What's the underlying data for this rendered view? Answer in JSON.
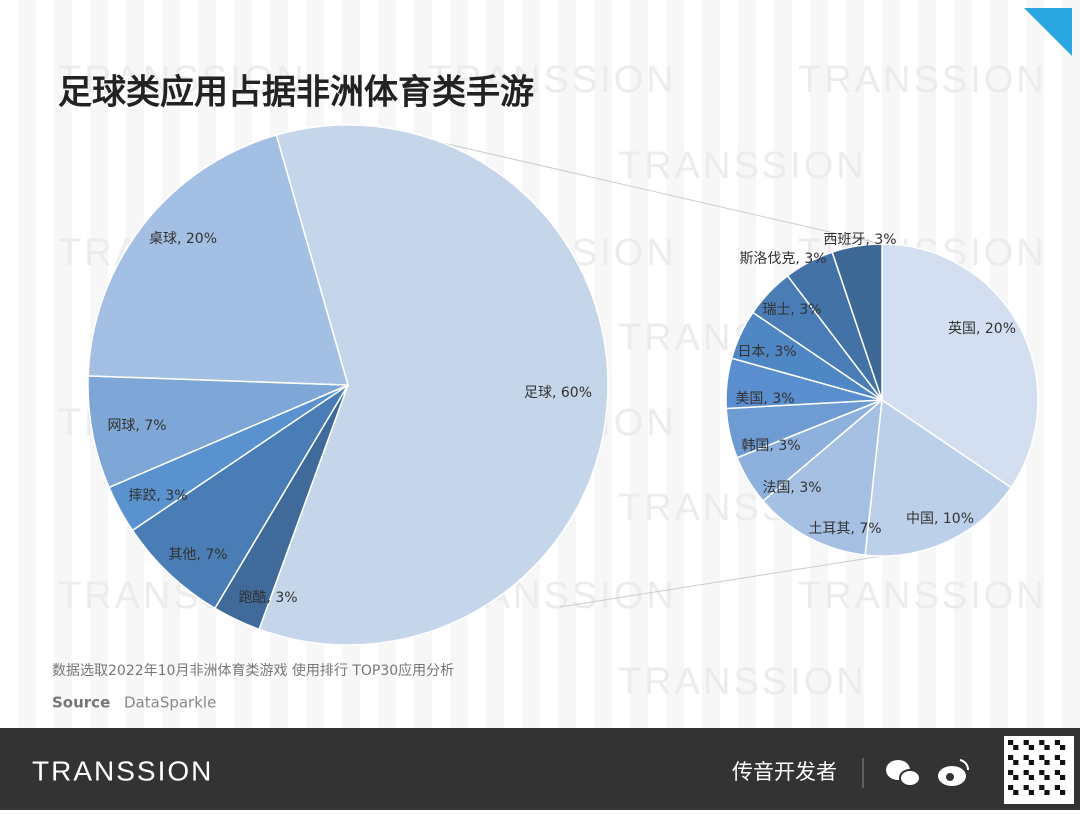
{
  "title": "足球类应用占据非洲体育类手游",
  "watermark": "TRANSSION",
  "chart_data": [
    {
      "type": "pie",
      "values": [
        60,
        3,
        7,
        3,
        7,
        20
      ],
      "value_labels": [
        "足球, 60%",
        "跑酷, 3%",
        "其他, 7%",
        "摔跤, 3%",
        "网球, 7%",
        "桌球, 20%"
      ],
      "colors": [
        "#c5d5ea",
        "#3f6a99",
        "#4a7db5",
        "#5a92cf",
        "#7ea6d6",
        "#a3bfe3"
      ]
    },
    {
      "type": "pie",
      "values": [
        20,
        10,
        7,
        3,
        3,
        3,
        3,
        3,
        3,
        3
      ],
      "value_labels": [
        "英国, 20%",
        "中国, 10%",
        "土耳其, 7%",
        "法国, 3%",
        "韩国, 3%",
        "美国, 3%",
        "日本, 3%",
        "瑞士, 3%",
        "斯洛伐克, 3%",
        "西班牙, 3%"
      ],
      "colors": [
        "#d3dff0",
        "#bcd0ea",
        "#a5c0e3",
        "#8db0dc",
        "#6f9bd3",
        "#5a8ecf",
        "#4f86c4",
        "#4a7cb5",
        "#4372a6",
        "#3d6795"
      ]
    }
  ],
  "note": "数据选取2022年10月非洲体育类游戏  使用排行 TOP30应用分析",
  "source_label": "Source",
  "source": "DataSparkle",
  "footer": {
    "brand": "TRANSSION",
    "channel": "传音开发者"
  }
}
